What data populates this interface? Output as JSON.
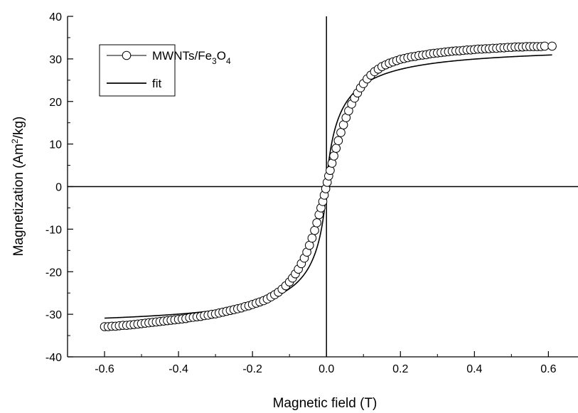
{
  "chart_data": {
    "type": "scatter",
    "xlabel": "Magnetic field (T)",
    "ylabel": {
      "main": "Magnetization (Am",
      "sup": "2",
      "rest": "/kg)"
    },
    "xlim": [
      -0.7,
      0.68
    ],
    "ylim": [
      -40,
      40
    ],
    "x_ticks": [
      -0.6,
      -0.4,
      -0.2,
      0.0,
      0.2,
      0.4,
      0.6
    ],
    "x_tick_labels": [
      "-0.6",
      "-0.4",
      "-0.2",
      "0.0",
      "0.2",
      "0.4",
      "0.6"
    ],
    "y_ticks": [
      -40,
      -30,
      -20,
      -10,
      0,
      10,
      20,
      30,
      40
    ],
    "y_tick_labels": [
      "-40",
      "-30",
      "-20",
      "-10",
      "0",
      "10",
      "20",
      "30",
      "40"
    ],
    "zero_lines": true,
    "grid": false,
    "legend": {
      "position": "top-left",
      "entries": [
        {
          "parts": [
            {
              "t": "MWNTs/Fe",
              "s": ""
            },
            {
              "t": "3",
              "s": "sub"
            },
            {
              "t": "O",
              "s": ""
            },
            {
              "t": "4",
              "s": "sub"
            }
          ],
          "marker": "circle"
        },
        {
          "parts": [
            {
              "t": "fit",
              "s": ""
            }
          ],
          "marker": "line"
        }
      ]
    },
    "series": [
      {
        "marker": "open-circle",
        "x": [
          -0.6,
          -0.59,
          -0.58,
          -0.57,
          -0.56,
          -0.55,
          -0.54,
          -0.53,
          -0.52,
          -0.51,
          -0.5,
          -0.49,
          -0.48,
          -0.47,
          -0.46,
          -0.45,
          -0.44,
          -0.43,
          -0.42,
          -0.41,
          -0.4,
          -0.39,
          -0.38,
          -0.37,
          -0.36,
          -0.35,
          -0.34,
          -0.33,
          -0.32,
          -0.31,
          -0.3,
          -0.29,
          -0.28,
          -0.27,
          -0.26,
          -0.25,
          -0.24,
          -0.23,
          -0.22,
          -0.21,
          -0.2,
          -0.19,
          -0.18,
          -0.17,
          -0.16,
          -0.15,
          -0.14,
          -0.13,
          -0.12,
          -0.11,
          -0.1,
          -0.092,
          -0.084,
          -0.076,
          -0.068,
          -0.06,
          -0.053,
          -0.046,
          -0.039,
          -0.032,
          -0.026,
          -0.02,
          -0.015,
          -0.01,
          -0.006,
          -0.002,
          0.002,
          0.006,
          0.01,
          0.015,
          0.02,
          0.026,
          0.032,
          0.039,
          0.046,
          0.053,
          0.06,
          0.068,
          0.076,
          0.084,
          0.092,
          0.1,
          0.11,
          0.12,
          0.13,
          0.14,
          0.15,
          0.16,
          0.17,
          0.18,
          0.19,
          0.2,
          0.21,
          0.22,
          0.23,
          0.24,
          0.25,
          0.26,
          0.27,
          0.28,
          0.29,
          0.3,
          0.31,
          0.32,
          0.33,
          0.34,
          0.35,
          0.36,
          0.37,
          0.38,
          0.39,
          0.4,
          0.41,
          0.42,
          0.43,
          0.44,
          0.45,
          0.46,
          0.47,
          0.48,
          0.49,
          0.5,
          0.51,
          0.52,
          0.53,
          0.54,
          0.55,
          0.56,
          0.57,
          0.58,
          0.59,
          0.61
        ],
        "y": [
          -32.9,
          -32.9,
          -32.8,
          -32.8,
          -32.7,
          -32.6,
          -32.6,
          -32.5,
          -32.4,
          -32.3,
          -32.2,
          -32.1,
          -32.0,
          -31.9,
          -31.8,
          -31.7,
          -31.6,
          -31.5,
          -31.4,
          -31.3,
          -31.2,
          -31.1,
          -31.0,
          -30.8,
          -30.7,
          -30.6,
          -30.5,
          -30.3,
          -30.2,
          -30.0,
          -29.9,
          -29.7,
          -29.5,
          -29.3,
          -29.1,
          -28.9,
          -28.7,
          -28.5,
          -28.2,
          -28.0,
          -27.7,
          -27.4,
          -27.1,
          -26.8,
          -26.4,
          -25.9,
          -25.4,
          -24.8,
          -24.1,
          -23.3,
          -22.4,
          -21.5,
          -20.5,
          -19.4,
          -18.1,
          -16.8,
          -15.4,
          -13.8,
          -12.1,
          -10.3,
          -8.5,
          -6.6,
          -5.0,
          -3.5,
          -2.0,
          -0.5,
          1.0,
          2.5,
          3.8,
          5.5,
          7.2,
          9.0,
          10.8,
          12.7,
          14.5,
          16.2,
          17.8,
          19.4,
          20.8,
          22.0,
          23.2,
          24.2,
          25.3,
          26.2,
          27.0,
          27.6,
          28.2,
          28.6,
          29.0,
          29.3,
          29.6,
          29.9,
          30.1,
          30.3,
          30.5,
          30.6,
          30.8,
          30.9,
          31.0,
          31.2,
          31.3,
          31.4,
          31.5,
          31.6,
          31.7,
          31.8,
          31.9,
          31.9,
          32.0,
          32.1,
          32.1,
          32.2,
          32.3,
          32.3,
          32.4,
          32.4,
          32.5,
          32.5,
          32.6,
          32.6,
          32.7,
          32.7,
          32.8,
          32.8,
          32.8,
          32.9,
          32.9,
          32.9,
          32.9,
          32.9,
          33.0,
          33.0
        ]
      },
      {
        "marker": "line",
        "fit": {
          "ms": 33.3,
          "a": 0.035,
          "p": 0.9
        }
      }
    ]
  }
}
